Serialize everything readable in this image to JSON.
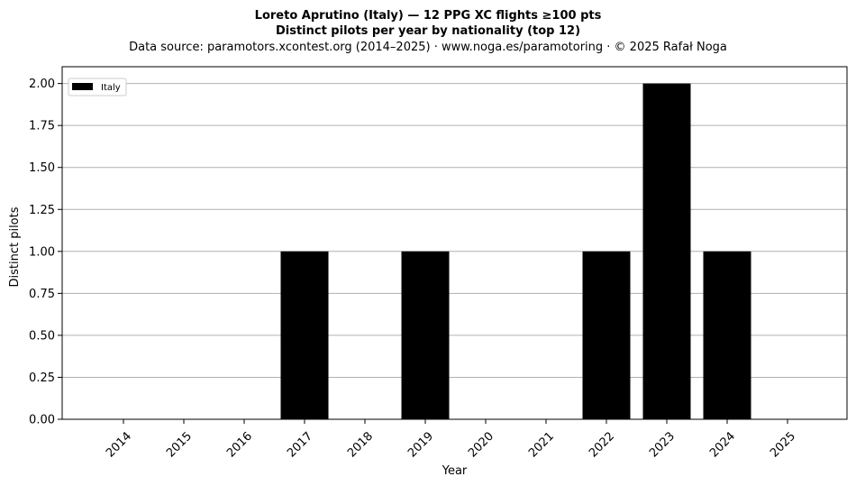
{
  "chart_data": {
    "type": "bar",
    "title": "Loreto Aprutino (Italy)  —  12 PPG XC flights ≥100 pts",
    "subtitle": "Distinct pilots per year by nationality (top 12)",
    "source_note": "Data source: paramotors.xcontest.org (2014–2025)  ·  www.noga.es/paramotoring  ·  © 2025 Rafał Noga",
    "xlabel": "Year",
    "ylabel": "Distinct pilots",
    "categories": [
      "2014",
      "2015",
      "2016",
      "2017",
      "2018",
      "2019",
      "2020",
      "2021",
      "2022",
      "2023",
      "2024",
      "2025"
    ],
    "series": [
      {
        "name": "Italy",
        "color": "#000000",
        "values": [
          0,
          0,
          0,
          1,
          0,
          1,
          0,
          0,
          1,
          2,
          1,
          0
        ]
      }
    ],
    "ylim": [
      0,
      2.1
    ],
    "yticks": [
      "0.00",
      "0.25",
      "0.50",
      "0.75",
      "1.00",
      "1.25",
      "1.50",
      "1.75",
      "2.00"
    ],
    "grid": "horizontal",
    "legend_position": "top-left"
  }
}
